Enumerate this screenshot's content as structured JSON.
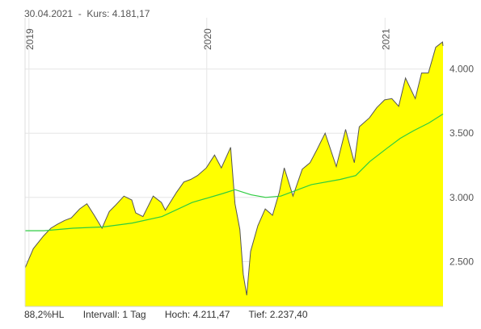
{
  "header": {
    "date": "30.04.2021",
    "separator": "-",
    "kurs_label": "Kurs:",
    "kurs_value": "4.181,17"
  },
  "footer": {
    "hl": "88,2%HL",
    "intervall": "Intervall: 1 Tag",
    "hoch_label": "Hoch:",
    "hoch_value": "4.211,47",
    "tief_label": "Tief:",
    "tief_value": "2.237,40"
  },
  "colors": {
    "area_fill": "#ffff00",
    "price_line": "#555555",
    "moving_average": "#2ecc40",
    "grid": "#e6e6e6"
  },
  "chart_data": {
    "type": "area",
    "title": "",
    "xlabel": "",
    "ylabel": "",
    "x_range": [
      "2018-12-24",
      "2021-04-30"
    ],
    "ylim": [
      2150,
      4350
    ],
    "y_ticks": [
      2500,
      3000,
      3500,
      4000
    ],
    "y_tick_labels": [
      "2.500",
      "3.000",
      "3.500",
      "4.000"
    ],
    "year_labels": [
      {
        "label": "2019",
        "date": "2019-01-01"
      },
      {
        "label": "2020",
        "date": "2020-01-01"
      },
      {
        "label": "2021",
        "date": "2021-01-01"
      }
    ],
    "grid": true,
    "legend": "none",
    "series": [
      {
        "kind": "price",
        "points": [
          [
            "2018-12-24",
            2450
          ],
          [
            "2019-01-10",
            2600
          ],
          [
            "2019-01-31",
            2700
          ],
          [
            "2019-02-15",
            2760
          ],
          [
            "2019-02-28",
            2790
          ],
          [
            "2019-03-15",
            2820
          ],
          [
            "2019-03-29",
            2840
          ],
          [
            "2019-04-15",
            2910
          ],
          [
            "2019-04-30",
            2950
          ],
          [
            "2019-05-15",
            2860
          ],
          [
            "2019-05-31",
            2760
          ],
          [
            "2019-06-15",
            2890
          ],
          [
            "2019-06-28",
            2940
          ],
          [
            "2019-07-15",
            3010
          ],
          [
            "2019-07-31",
            2980
          ],
          [
            "2019-08-08",
            2880
          ],
          [
            "2019-08-23",
            2850
          ],
          [
            "2019-09-13",
            3010
          ],
          [
            "2019-09-30",
            2960
          ],
          [
            "2019-10-08",
            2900
          ],
          [
            "2019-10-31",
            3040
          ],
          [
            "2019-11-15",
            3120
          ],
          [
            "2019-11-29",
            3140
          ],
          [
            "2019-12-13",
            3170
          ],
          [
            "2019-12-31",
            3230
          ],
          [
            "2020-01-17",
            3330
          ],
          [
            "2020-01-31",
            3230
          ],
          [
            "2020-02-19",
            3390
          ],
          [
            "2020-02-28",
            2950
          ],
          [
            "2020-03-09",
            2750
          ],
          [
            "2020-03-16",
            2400
          ],
          [
            "2020-03-23",
            2237
          ],
          [
            "2020-03-31",
            2580
          ],
          [
            "2020-04-15",
            2780
          ],
          [
            "2020-04-30",
            2910
          ],
          [
            "2020-05-15",
            2860
          ],
          [
            "2020-05-29",
            3040
          ],
          [
            "2020-06-08",
            3230
          ],
          [
            "2020-06-26",
            3010
          ],
          [
            "2020-07-15",
            3220
          ],
          [
            "2020-07-31",
            3270
          ],
          [
            "2020-08-14",
            3370
          ],
          [
            "2020-08-31",
            3500
          ],
          [
            "2020-09-23",
            3240
          ],
          [
            "2020-10-12",
            3530
          ],
          [
            "2020-10-30",
            3270
          ],
          [
            "2020-11-09",
            3550
          ],
          [
            "2020-11-30",
            3620
          ],
          [
            "2020-12-15",
            3700
          ],
          [
            "2020-12-31",
            3760
          ],
          [
            "2021-01-15",
            3770
          ],
          [
            "2021-01-29",
            3710
          ],
          [
            "2021-02-12",
            3930
          ],
          [
            "2021-03-04",
            3770
          ],
          [
            "2021-03-17",
            3970
          ],
          [
            "2021-03-31",
            3970
          ],
          [
            "2021-04-15",
            4170
          ],
          [
            "2021-04-29",
            4211
          ],
          [
            "2021-04-30",
            4181
          ]
        ]
      },
      {
        "kind": "moving-average",
        "points": [
          [
            "2018-12-24",
            2740
          ],
          [
            "2019-02-01",
            2740
          ],
          [
            "2019-04-01",
            2760
          ],
          [
            "2019-06-03",
            2770
          ],
          [
            "2019-08-01",
            2800
          ],
          [
            "2019-10-01",
            2850
          ],
          [
            "2019-12-02",
            2960
          ],
          [
            "2020-02-03",
            3030
          ],
          [
            "2020-02-28",
            3060
          ],
          [
            "2020-04-01",
            3020
          ],
          [
            "2020-05-01",
            3000
          ],
          [
            "2020-06-01",
            3010
          ],
          [
            "2020-08-03",
            3100
          ],
          [
            "2020-10-01",
            3140
          ],
          [
            "2020-11-02",
            3170
          ],
          [
            "2020-12-01",
            3280
          ],
          [
            "2021-01-04",
            3380
          ],
          [
            "2021-02-01",
            3460
          ],
          [
            "2021-03-01",
            3520
          ],
          [
            "2021-04-01",
            3580
          ],
          [
            "2021-04-30",
            3650
          ]
        ]
      }
    ]
  }
}
